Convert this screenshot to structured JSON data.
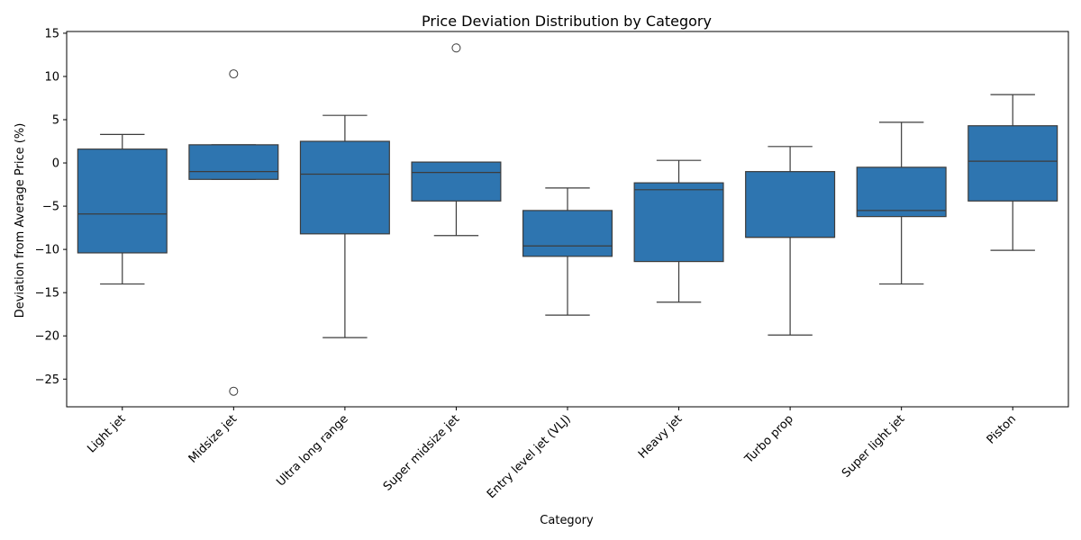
{
  "chart_data": {
    "type": "box",
    "title": "Price Deviation Distribution by Category",
    "xlabel": "Category",
    "ylabel": "Deviation from Average Price (%)",
    "ylim": [
      -28.2,
      15.2
    ],
    "yticks": [
      -25,
      -20,
      -15,
      -10,
      -5,
      0,
      5,
      10,
      15
    ],
    "grid": false,
    "legend": "none",
    "box_color": "#2e75b0",
    "line_color": "#3c3c3c",
    "categories": [
      "Light jet",
      "Midsize jet",
      "Ultra long range",
      "Super midsize jet",
      "Entry level jet (VLJ)",
      "Heavy jet",
      "Turbo prop",
      "Super light jet",
      "Piston"
    ],
    "boxes": [
      {
        "whislo": -14.0,
        "q1": -10.4,
        "med": -5.9,
        "q3": 1.6,
        "whishi": 3.3,
        "fliers": []
      },
      {
        "whislo": -1.9,
        "q1": -1.9,
        "med": -1.0,
        "q3": 2.1,
        "whishi": 2.1,
        "fliers": [
          10.3,
          -26.4
        ]
      },
      {
        "whislo": -20.2,
        "q1": -8.2,
        "med": -1.3,
        "q3": 2.5,
        "whishi": 5.5,
        "fliers": []
      },
      {
        "whislo": -8.4,
        "q1": -4.4,
        "med": -1.1,
        "q3": 0.1,
        "whishi": 0.1,
        "fliers": [
          13.3
        ]
      },
      {
        "whislo": -17.6,
        "q1": -10.8,
        "med": -9.6,
        "q3": -5.5,
        "whishi": -2.9,
        "fliers": []
      },
      {
        "whislo": -16.1,
        "q1": -11.4,
        "med": -3.1,
        "q3": -2.3,
        "whishi": 0.3,
        "fliers": []
      },
      {
        "whislo": -19.9,
        "q1": -8.6,
        "med": -8.6,
        "q3": -1.0,
        "whishi": 1.9,
        "fliers": []
      },
      {
        "whislo": -14.0,
        "q1": -6.2,
        "med": -5.5,
        "q3": -0.5,
        "whishi": 4.7,
        "fliers": []
      },
      {
        "whislo": -10.1,
        "q1": -4.4,
        "med": 0.2,
        "q3": 4.3,
        "whishi": 7.9,
        "fliers": []
      }
    ]
  }
}
